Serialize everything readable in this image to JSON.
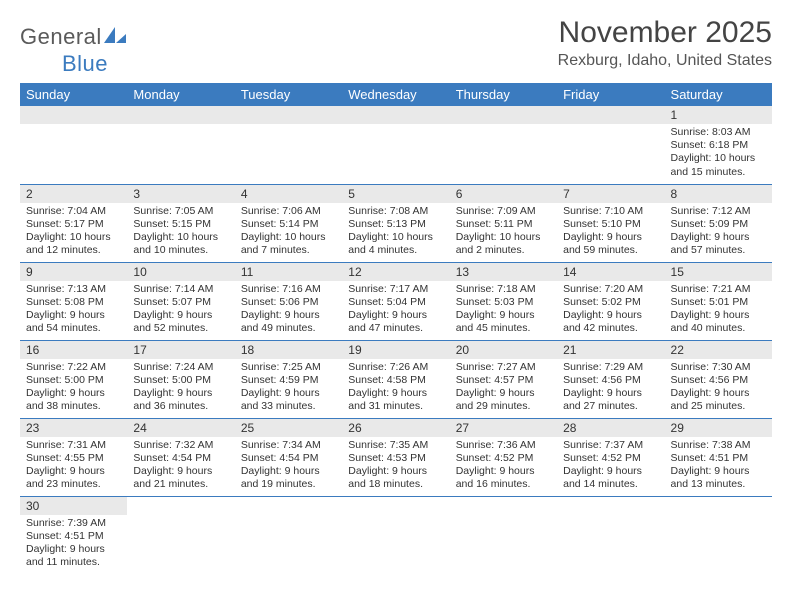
{
  "logo": {
    "text_gray": "General",
    "text_blue": "Blue",
    "gray_color": "#5a5a5a",
    "blue_color": "#3b7bbf"
  },
  "title": "November 2025",
  "subtitle": "Rexburg, Idaho, United States",
  "calendar": {
    "type": "table",
    "header_bg": "#3b7bbf",
    "header_fg": "#ffffff",
    "band_bg": "#e9e9e9",
    "row_divider_color": "#3b7bbf",
    "cell_font_size": 10.5,
    "header_font_size": 13,
    "columns": [
      "Sunday",
      "Monday",
      "Tuesday",
      "Wednesday",
      "Thursday",
      "Friday",
      "Saturday"
    ],
    "weeks": [
      [
        null,
        null,
        null,
        null,
        null,
        null,
        {
          "n": "1",
          "sunrise": "Sunrise: 8:03 AM",
          "sunset": "Sunset: 6:18 PM",
          "day1": "Daylight: 10 hours",
          "day2": "and 15 minutes."
        }
      ],
      [
        {
          "n": "2",
          "sunrise": "Sunrise: 7:04 AM",
          "sunset": "Sunset: 5:17 PM",
          "day1": "Daylight: 10 hours",
          "day2": "and 12 minutes."
        },
        {
          "n": "3",
          "sunrise": "Sunrise: 7:05 AM",
          "sunset": "Sunset: 5:15 PM",
          "day1": "Daylight: 10 hours",
          "day2": "and 10 minutes."
        },
        {
          "n": "4",
          "sunrise": "Sunrise: 7:06 AM",
          "sunset": "Sunset: 5:14 PM",
          "day1": "Daylight: 10 hours",
          "day2": "and 7 minutes."
        },
        {
          "n": "5",
          "sunrise": "Sunrise: 7:08 AM",
          "sunset": "Sunset: 5:13 PM",
          "day1": "Daylight: 10 hours",
          "day2": "and 4 minutes."
        },
        {
          "n": "6",
          "sunrise": "Sunrise: 7:09 AM",
          "sunset": "Sunset: 5:11 PM",
          "day1": "Daylight: 10 hours",
          "day2": "and 2 minutes."
        },
        {
          "n": "7",
          "sunrise": "Sunrise: 7:10 AM",
          "sunset": "Sunset: 5:10 PM",
          "day1": "Daylight: 9 hours",
          "day2": "and 59 minutes."
        },
        {
          "n": "8",
          "sunrise": "Sunrise: 7:12 AM",
          "sunset": "Sunset: 5:09 PM",
          "day1": "Daylight: 9 hours",
          "day2": "and 57 minutes."
        }
      ],
      [
        {
          "n": "9",
          "sunrise": "Sunrise: 7:13 AM",
          "sunset": "Sunset: 5:08 PM",
          "day1": "Daylight: 9 hours",
          "day2": "and 54 minutes."
        },
        {
          "n": "10",
          "sunrise": "Sunrise: 7:14 AM",
          "sunset": "Sunset: 5:07 PM",
          "day1": "Daylight: 9 hours",
          "day2": "and 52 minutes."
        },
        {
          "n": "11",
          "sunrise": "Sunrise: 7:16 AM",
          "sunset": "Sunset: 5:06 PM",
          "day1": "Daylight: 9 hours",
          "day2": "and 49 minutes."
        },
        {
          "n": "12",
          "sunrise": "Sunrise: 7:17 AM",
          "sunset": "Sunset: 5:04 PM",
          "day1": "Daylight: 9 hours",
          "day2": "and 47 minutes."
        },
        {
          "n": "13",
          "sunrise": "Sunrise: 7:18 AM",
          "sunset": "Sunset: 5:03 PM",
          "day1": "Daylight: 9 hours",
          "day2": "and 45 minutes."
        },
        {
          "n": "14",
          "sunrise": "Sunrise: 7:20 AM",
          "sunset": "Sunset: 5:02 PM",
          "day1": "Daylight: 9 hours",
          "day2": "and 42 minutes."
        },
        {
          "n": "15",
          "sunrise": "Sunrise: 7:21 AM",
          "sunset": "Sunset: 5:01 PM",
          "day1": "Daylight: 9 hours",
          "day2": "and 40 minutes."
        }
      ],
      [
        {
          "n": "16",
          "sunrise": "Sunrise: 7:22 AM",
          "sunset": "Sunset: 5:00 PM",
          "day1": "Daylight: 9 hours",
          "day2": "and 38 minutes."
        },
        {
          "n": "17",
          "sunrise": "Sunrise: 7:24 AM",
          "sunset": "Sunset: 5:00 PM",
          "day1": "Daylight: 9 hours",
          "day2": "and 36 minutes."
        },
        {
          "n": "18",
          "sunrise": "Sunrise: 7:25 AM",
          "sunset": "Sunset: 4:59 PM",
          "day1": "Daylight: 9 hours",
          "day2": "and 33 minutes."
        },
        {
          "n": "19",
          "sunrise": "Sunrise: 7:26 AM",
          "sunset": "Sunset: 4:58 PM",
          "day1": "Daylight: 9 hours",
          "day2": "and 31 minutes."
        },
        {
          "n": "20",
          "sunrise": "Sunrise: 7:27 AM",
          "sunset": "Sunset: 4:57 PM",
          "day1": "Daylight: 9 hours",
          "day2": "and 29 minutes."
        },
        {
          "n": "21",
          "sunrise": "Sunrise: 7:29 AM",
          "sunset": "Sunset: 4:56 PM",
          "day1": "Daylight: 9 hours",
          "day2": "and 27 minutes."
        },
        {
          "n": "22",
          "sunrise": "Sunrise: 7:30 AM",
          "sunset": "Sunset: 4:56 PM",
          "day1": "Daylight: 9 hours",
          "day2": "and 25 minutes."
        }
      ],
      [
        {
          "n": "23",
          "sunrise": "Sunrise: 7:31 AM",
          "sunset": "Sunset: 4:55 PM",
          "day1": "Daylight: 9 hours",
          "day2": "and 23 minutes."
        },
        {
          "n": "24",
          "sunrise": "Sunrise: 7:32 AM",
          "sunset": "Sunset: 4:54 PM",
          "day1": "Daylight: 9 hours",
          "day2": "and 21 minutes."
        },
        {
          "n": "25",
          "sunrise": "Sunrise: 7:34 AM",
          "sunset": "Sunset: 4:54 PM",
          "day1": "Daylight: 9 hours",
          "day2": "and 19 minutes."
        },
        {
          "n": "26",
          "sunrise": "Sunrise: 7:35 AM",
          "sunset": "Sunset: 4:53 PM",
          "day1": "Daylight: 9 hours",
          "day2": "and 18 minutes."
        },
        {
          "n": "27",
          "sunrise": "Sunrise: 7:36 AM",
          "sunset": "Sunset: 4:52 PM",
          "day1": "Daylight: 9 hours",
          "day2": "and 16 minutes."
        },
        {
          "n": "28",
          "sunrise": "Sunrise: 7:37 AM",
          "sunset": "Sunset: 4:52 PM",
          "day1": "Daylight: 9 hours",
          "day2": "and 14 minutes."
        },
        {
          "n": "29",
          "sunrise": "Sunrise: 7:38 AM",
          "sunset": "Sunset: 4:51 PM",
          "day1": "Daylight: 9 hours",
          "day2": "and 13 minutes."
        }
      ],
      [
        {
          "n": "30",
          "sunrise": "Sunrise: 7:39 AM",
          "sunset": "Sunset: 4:51 PM",
          "day1": "Daylight: 9 hours",
          "day2": "and 11 minutes."
        },
        null,
        null,
        null,
        null,
        null,
        null
      ]
    ]
  }
}
